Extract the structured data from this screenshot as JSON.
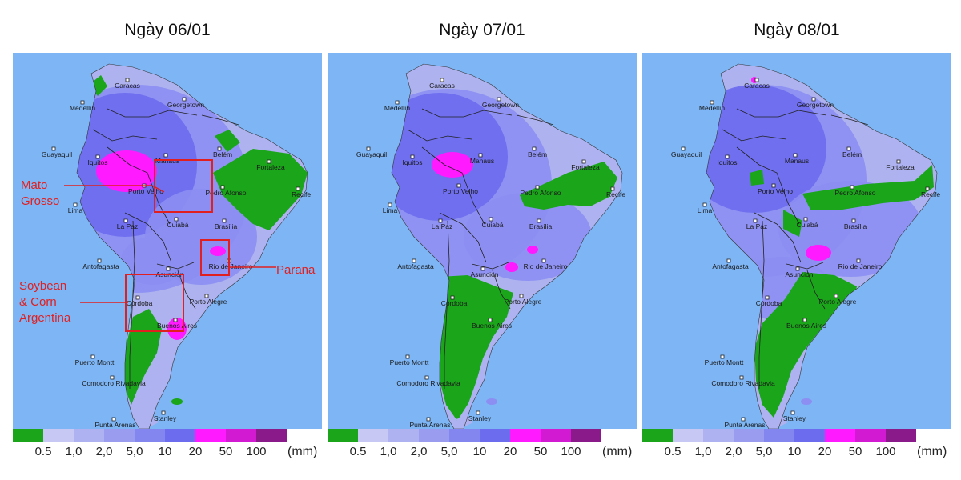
{
  "panels": [
    {
      "title": "Ngày 06/01"
    },
    {
      "title": "Ngày 07/01"
    },
    {
      "title": "Ngày 08/01"
    }
  ],
  "legend": {
    "labels": [
      "0.5",
      "1,0",
      "2,0",
      "5,0",
      "10",
      "20",
      "50",
      "100"
    ],
    "colors": [
      "#1aa51a",
      "#c8c8f4",
      "#aeb2f0",
      "#9a9cf0",
      "#8486f0",
      "#6c6cee",
      "#ff1aff",
      "#d21ad2",
      "#8a1a8a"
    ],
    "unit": "(mm)"
  },
  "colors": {
    "ocean": "#7db5f5",
    "dry": "#1aa51a",
    "rain_light": "#aeb2f0",
    "rain_mid": "#8c8ef2",
    "rain_heavy": "#6c6cee",
    "rain_extreme": "#ff1aff",
    "annotation": "#e02020"
  },
  "cities": [
    "Caracas",
    "Medellín",
    "Georgetown",
    "Guayaquil",
    "Iquitos",
    "Manaus",
    "Belém",
    "Fortaleza",
    "Recife",
    "Porto Velho",
    "Pedro Afonso",
    "Lima",
    "La Paz",
    "Cuiabá",
    "Brasília",
    "Antofagasta",
    "Asunción",
    "Rio de Janeiro",
    "Córdoba",
    "Porto Alegre",
    "Buenos Aires",
    "Puerto Montt",
    "Comodoro Rivadavia",
    "Stanley",
    "Punta Arenas"
  ],
  "annotations": {
    "mato_grosso": [
      "Mato",
      "Grosso"
    ],
    "parana": "Parana",
    "soybean": [
      "Soybean",
      "& Corn",
      "Argentina"
    ]
  }
}
